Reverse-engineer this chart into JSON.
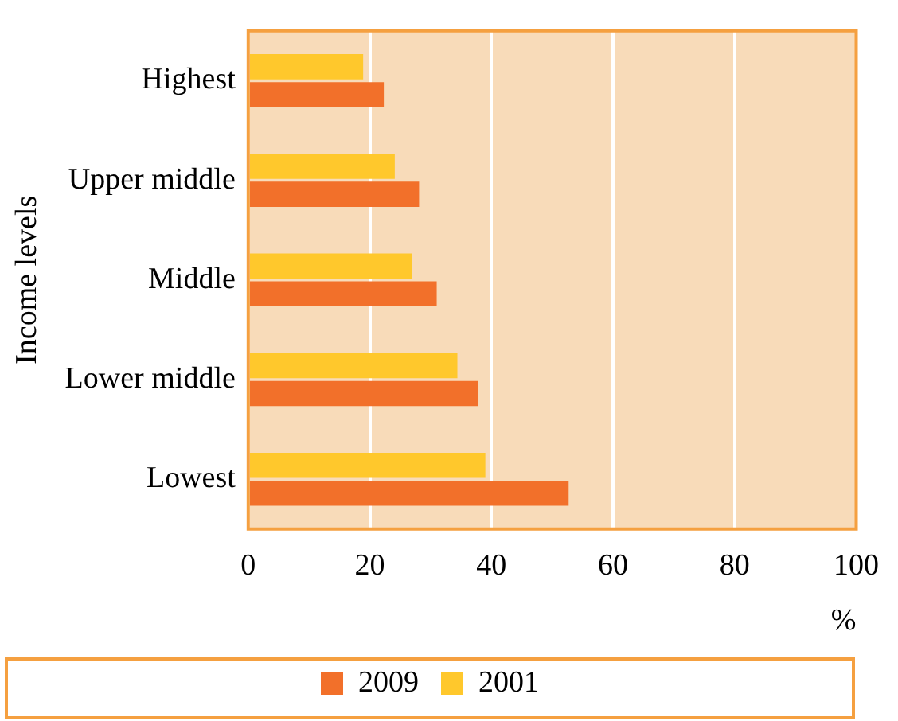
{
  "chart_data": {
    "type": "bar",
    "orientation": "horizontal",
    "ylabel": "Income levels",
    "xlabel": "%",
    "categories": [
      "Highest",
      "Upper middle",
      "Middle",
      "Lower middle",
      "Lowest"
    ],
    "series": [
      {
        "name": "2001",
        "color": "#ffc82c",
        "values": [
          18.9,
          24.1,
          26.9,
          34.4,
          39.0
        ]
      },
      {
        "name": "2009",
        "color": "#f2702a",
        "values": [
          22.3,
          28.1,
          31.0,
          37.8,
          52.7
        ]
      }
    ],
    "xlim": [
      0,
      100
    ],
    "xticks": [
      0,
      20,
      40,
      60,
      80,
      100
    ],
    "grid": "x",
    "legend": "bottom"
  }
}
